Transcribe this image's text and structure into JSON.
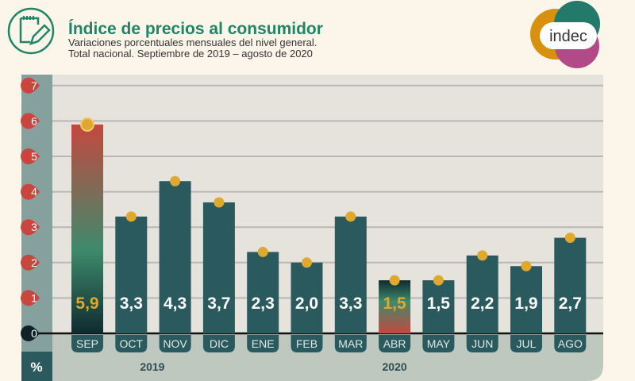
{
  "header": {
    "title": "Índice de precios al consumidor",
    "subtitle_line1": "Variaciones porcentuales mensuales del nivel general.",
    "subtitle_line2": "Total nacional. Septiembre de 2019 – agosto de 2020",
    "icon": "notepad-pencil-icon",
    "logo_text": "indec"
  },
  "chart_data": {
    "type": "bar",
    "categories": [
      "SEP",
      "OCT",
      "NOV",
      "DIC",
      "ENE",
      "FEB",
      "MAR",
      "ABR",
      "MAY",
      "JUN",
      "JUL",
      "AGO"
    ],
    "values": [
      5.9,
      3.3,
      4.3,
      3.7,
      2.3,
      2.0,
      3.3,
      1.5,
      1.5,
      2.2,
      1.9,
      2.7
    ],
    "data_labels": [
      "5,9",
      "3,3",
      "4,3",
      "3,7",
      "2,3",
      "2,0",
      "3,3",
      "1,5",
      "1,5",
      "2,2",
      "1,9",
      "2,7"
    ],
    "highlighted": [
      "SEP",
      "ABR"
    ],
    "yticks": [
      "0",
      "1",
      "2",
      "3",
      "4",
      "5",
      "6",
      "7"
    ],
    "ylim": [
      0,
      7
    ],
    "ylabel": "%",
    "years": [
      {
        "label": "2019",
        "under": "DIC"
      },
      {
        "label": "2020",
        "under": "ABR"
      }
    ],
    "grid": true,
    "colors": {
      "bar": "#2b5a5e",
      "highlight_red": "#c4483f",
      "highlight_green": "#3e8a6c",
      "label_highlight": "#e0a82e",
      "dot": "#e0a82e",
      "tick_badge": "#c9463e"
    }
  }
}
